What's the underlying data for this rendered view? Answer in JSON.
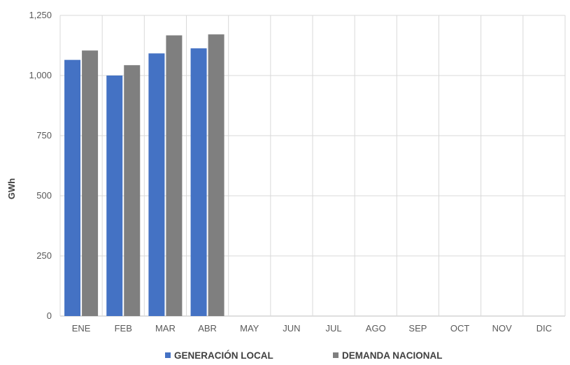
{
  "chart_data": {
    "type": "bar",
    "title": "",
    "xlabel": "",
    "ylabel": "GWh",
    "ylim": [
      0,
      1250
    ],
    "yticks": [
      0,
      250,
      500,
      750,
      1000,
      1250
    ],
    "ytick_labels": [
      "0",
      "250",
      "500",
      "750",
      "1,000",
      "1,250"
    ],
    "grid": true,
    "legend_position": "bottom",
    "categories": [
      "ENE",
      "FEB",
      "MAR",
      "ABR",
      "MAY",
      "JUN",
      "JUL",
      "AGO",
      "SEP",
      "OCT",
      "NOV",
      "DIC"
    ],
    "series": [
      {
        "name": "GENERACIÓN LOCAL",
        "color": "#4472C4",
        "values": [
          1065,
          1000,
          1092,
          1113,
          null,
          null,
          null,
          null,
          null,
          null,
          null,
          null
        ]
      },
      {
        "name": "DEMANDA NACIONAL",
        "color": "#7F7F7F",
        "values": [
          1104,
          1043,
          1167,
          1171,
          null,
          null,
          null,
          null,
          null,
          null,
          null,
          null
        ]
      }
    ]
  }
}
